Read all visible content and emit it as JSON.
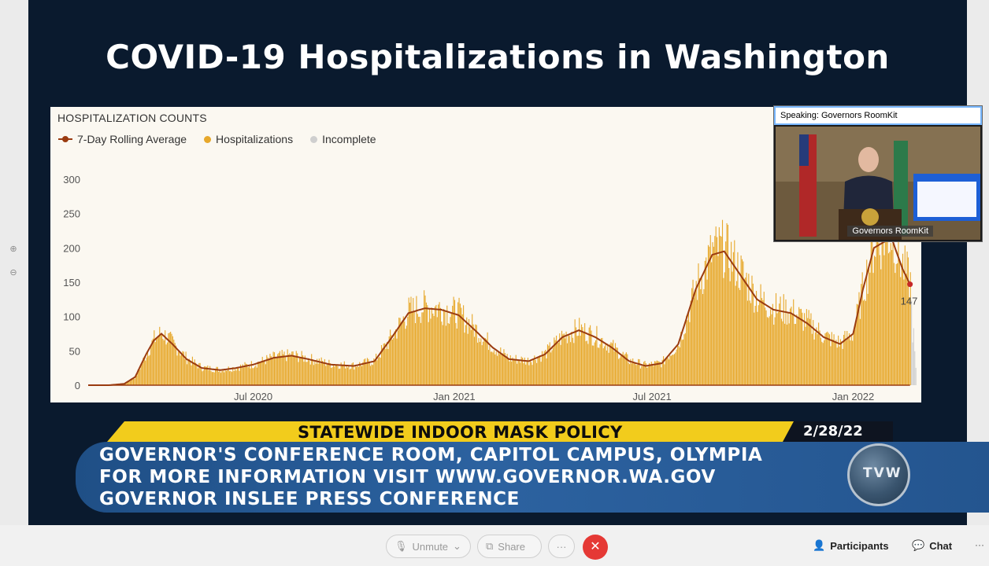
{
  "slide": {
    "title": "COVID-19 Hospitalizations in Washington"
  },
  "chart_data": {
    "type": "bar",
    "title": "HOSPITALIZATION COUNTS",
    "legend": [
      "7-Day Rolling Average",
      "Hospitalizations",
      "Incomplete"
    ],
    "legend_position": "top-left",
    "series_colors": {
      "rolling_average": "#9a3b10",
      "hospitalizations": "#e7a82b",
      "incomplete": "#cfcfcf"
    },
    "y_ticks": [
      0,
      50,
      100,
      150,
      200,
      250,
      300
    ],
    "ylim": [
      0,
      300
    ],
    "x_ticks": [
      "Jul 2020",
      "Jan 2021",
      "Jul 2021",
      "Jan 2022"
    ],
    "x_range": [
      "2020-02-01",
      "2022-02-28"
    ],
    "grid": false,
    "rolling_average_points": [
      [
        "2020-02-01",
        0
      ],
      [
        "2020-02-20",
        0
      ],
      [
        "2020-03-05",
        2
      ],
      [
        "2020-03-15",
        12
      ],
      [
        "2020-03-25",
        45
      ],
      [
        "2020-04-01",
        65
      ],
      [
        "2020-04-08",
        75
      ],
      [
        "2020-04-18",
        60
      ],
      [
        "2020-05-01",
        38
      ],
      [
        "2020-05-15",
        25
      ],
      [
        "2020-06-01",
        22
      ],
      [
        "2020-06-15",
        25
      ],
      [
        "2020-07-01",
        30
      ],
      [
        "2020-07-20",
        40
      ],
      [
        "2020-08-05",
        43
      ],
      [
        "2020-08-20",
        38
      ],
      [
        "2020-09-10",
        30
      ],
      [
        "2020-10-01",
        28
      ],
      [
        "2020-10-20",
        35
      ],
      [
        "2020-11-05",
        70
      ],
      [
        "2020-11-20",
        105
      ],
      [
        "2020-12-05",
        112
      ],
      [
        "2020-12-20",
        110
      ],
      [
        "2021-01-05",
        102
      ],
      [
        "2021-01-20",
        80
      ],
      [
        "2021-02-05",
        55
      ],
      [
        "2021-02-20",
        38
      ],
      [
        "2021-03-10",
        35
      ],
      [
        "2021-03-25",
        45
      ],
      [
        "2021-04-10",
        70
      ],
      [
        "2021-04-25",
        80
      ],
      [
        "2021-05-10",
        70
      ],
      [
        "2021-05-25",
        55
      ],
      [
        "2021-06-10",
        35
      ],
      [
        "2021-06-25",
        28
      ],
      [
        "2021-07-10",
        32
      ],
      [
        "2021-07-25",
        60
      ],
      [
        "2021-08-10",
        140
      ],
      [
        "2021-08-25",
        190
      ],
      [
        "2021-09-05",
        195
      ],
      [
        "2021-09-20",
        160
      ],
      [
        "2021-10-05",
        125
      ],
      [
        "2021-10-20",
        110
      ],
      [
        "2021-11-05",
        105
      ],
      [
        "2021-11-20",
        90
      ],
      [
        "2021-12-05",
        70
      ],
      [
        "2021-12-20",
        60
      ],
      [
        "2022-01-01",
        75
      ],
      [
        "2022-01-10",
        140
      ],
      [
        "2022-01-20",
        200
      ],
      [
        "2022-02-05",
        215
      ],
      [
        "2022-02-15",
        170
      ],
      [
        "2022-02-22",
        147
      ]
    ],
    "annotations": [
      {
        "date": "2022-02-22",
        "value": 147,
        "label": "147"
      }
    ]
  },
  "video": {
    "speaking_label": "Speaking: Governors RoomKit",
    "participant_name": "Governors RoomKit"
  },
  "banner": {
    "headline": "STATEWIDE INDOOR MASK POLICY",
    "date": "2/28/22",
    "lines": [
      "GOVERNOR'S CONFERENCE ROOM, CAPITOL CAMPUS, OLYMPIA",
      "FOR MORE INFORMATION VISIT WWW.GOVERNOR.WA.GOV",
      "GOVERNOR INSLEE PRESS CONFERENCE"
    ],
    "logo_text": "TVW"
  },
  "toolbar": {
    "unmute_label": "Unmute",
    "share_label": "Share",
    "more_label": "···",
    "end_label": "✕",
    "participants_label": "Participants",
    "chat_label": "Chat",
    "overflow_label": "···"
  },
  "icons": {
    "zoom_in": "zoom-in-icon",
    "zoom_out": "zoom-out-icon",
    "mic_off": "mic-off-icon",
    "share": "share-screen-icon",
    "participants": "participants-icon",
    "chat": "chat-icon"
  }
}
